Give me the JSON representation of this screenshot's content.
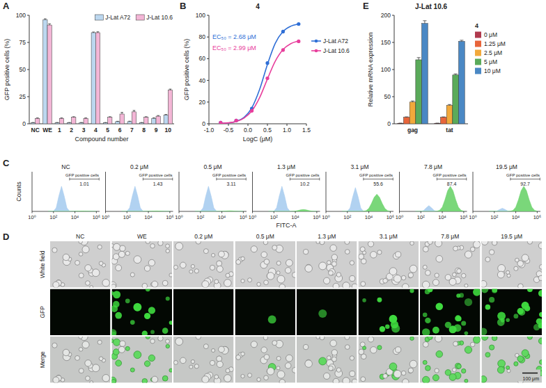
{
  "chart_data": [
    {
      "panel_label": "A",
      "type": "bar",
      "x_label": "Compound number",
      "y_label": "GFP positive cells (%)",
      "categories": [
        "NC",
        "WE",
        "1",
        "2",
        "3",
        "4",
        "5",
        "6",
        "7",
        "8",
        "9",
        "10"
      ],
      "series": [
        {
          "name": "J-Lat A72",
          "color": "#bcd7ef",
          "values": [
            1,
            96,
            1,
            1,
            1,
            84,
            1,
            2,
            2,
            1,
            5,
            8
          ],
          "errors": [
            0.2,
            0.8,
            0.2,
            0.2,
            0.2,
            0.6,
            0.2,
            0.3,
            0.4,
            0.2,
            0.5,
            0.6
          ]
        },
        {
          "name": "J-Lat 10.6",
          "color": "#f3b6d6",
          "values": [
            5,
            91,
            5,
            6,
            5,
            84,
            6,
            9,
            11,
            6,
            7,
            31
          ],
          "errors": [
            0.4,
            1.2,
            0.4,
            0.5,
            0.4,
            0.8,
            0.5,
            1.5,
            1.3,
            0.5,
            0.6,
            1.0
          ]
        }
      ],
      "ylim": [
        0,
        100
      ],
      "yticks": [
        0,
        25,
        50,
        75,
        100
      ],
      "legend": "top-right"
    },
    {
      "panel_label": "B",
      "type": "line",
      "title": "4",
      "x_label": "LogC (μM)",
      "y_label": "GFP positive cells (%)",
      "xlim": [
        -1,
        1.5
      ],
      "xticks": [
        {
          "value": -1,
          "label": "-1.0"
        },
        -0.5,
        {
          "value": 0,
          "label": "0.0"
        },
        0.5,
        {
          "value": 1,
          "label": "1.0"
        },
        1.5
      ],
      "ylim": [
        0,
        100
      ],
      "yticks": [
        0,
        20,
        40,
        60,
        80,
        100
      ],
      "series": [
        {
          "name": "J-Lat A72",
          "color": "#2f6fd6",
          "marker": "circle",
          "x": [
            -0.7,
            -0.3,
            0.1,
            0.5,
            0.9,
            1.3
          ],
          "values": [
            1,
            3,
            14,
            56,
            85,
            92
          ],
          "fit": {
            "x": [
              -0.7,
              -0.5,
              -0.3,
              -0.1,
              0.1,
              0.3,
              0.5,
              0.7,
              0.9,
              1.1,
              1.3
            ],
            "values": [
              0.3,
              0.8,
              2.3,
              5.9,
              14.7,
              31.7,
              54.7,
              74.1,
              85.1,
              90,
              91.9
            ]
          }
        },
        {
          "name": "J-Lat 10.6",
          "color": "#e83e9c",
          "marker": "circle",
          "x": [
            -0.7,
            -0.3,
            0.1,
            0.5,
            0.9,
            1.3
          ],
          "values": [
            1,
            3,
            12,
            42,
            68,
            76
          ],
          "fit": {
            "x": [
              -0.7,
              -0.5,
              -0.3,
              -0.1,
              0.1,
              0.3,
              0.5,
              0.7,
              0.9,
              1.1,
              1.3
            ],
            "values": [
              0.3,
              0.9,
              2.1,
              5.2,
              11.8,
              24.1,
              41.3,
              57.6,
              68.4,
              73.9,
              76.3
            ]
          }
        }
      ],
      "annotations": [
        {
          "text": "EC₅₀ = 2.68 μM",
          "color": "#2f6fd6"
        },
        {
          "text": "EC₅₀ = 2.99 μM",
          "color": "#e83e9c"
        }
      ],
      "legend": "right"
    },
    {
      "panel_label": "C",
      "type": "area",
      "x_label": "FITC-A",
      "y_label": "Counts",
      "log": "x",
      "tick_labels": "x",
      "xlim": [
        1,
        2000000
      ],
      "xticks": [
        {
          "value": 1,
          "label": "10⁰"
        },
        {
          "value": 100,
          "label": "10²"
        },
        {
          "value": 10000,
          "label": "10⁴"
        },
        {
          "value": 1000000,
          "label": "10⁶"
        }
      ],
      "ylim": [
        0,
        150
      ],
      "x": [
        31.6,
        56.2,
        100,
        177.8,
        316.2,
        562.3,
        1000,
        1778,
        3162,
        5623,
        10000,
        17783,
        31623,
        56234,
        100000,
        177828,
        316228,
        562341,
        1000000
      ],
      "panels": [
        {
          "title": "NC",
          "gate": {
            "label": "GFP positive cells",
            "value": 1.01,
            "x": [
              3162,
              1800000
            ]
          },
          "series": [
            {
              "color": "#a9cdf0",
              "values": [
                0,
                0,
                1,
                13,
                58,
                95,
                58,
                13,
                1,
                0,
                0,
                0,
                0,
                0,
                0,
                0,
                0,
                0,
                0
              ]
            },
            {
              "color": "#6cd36c",
              "values": [
                0,
                0,
                0,
                0,
                0,
                0,
                0,
                0,
                0,
                0,
                0.2,
                0.5,
                0.8,
                1,
                0.8,
                0.5,
                0.2,
                0,
                0
              ]
            }
          ]
        },
        {
          "title": "0.2 μM",
          "gate": {
            "label": "GFP positive cells",
            "value": 1.43,
            "x": [
              3162,
              1800000
            ]
          },
          "series": [
            {
              "color": "#a9cdf0",
              "values": [
                0,
                0,
                1,
                13,
                58,
                95,
                58,
                13,
                1,
                0,
                0,
                0,
                0,
                0,
                0,
                0,
                0,
                0,
                0
              ]
            },
            {
              "color": "#6cd36c",
              "values": [
                0,
                0,
                0,
                0,
                0,
                0,
                0,
                0,
                0,
                0.1,
                0.3,
                0.7,
                1.2,
                1.5,
                1.2,
                0.7,
                0.3,
                0.1,
                0
              ]
            }
          ]
        },
        {
          "title": "0.5 μM",
          "gate": {
            "label": "GFP positive cells",
            "value": 3.11,
            "x": [
              3162,
              1800000
            ]
          },
          "series": [
            {
              "color": "#a9cdf0",
              "values": [
                0,
                0,
                1,
                13,
                58,
                95,
                58,
                13,
                1,
                0,
                0,
                0,
                0,
                0,
                0,
                0,
                0,
                0,
                0
              ]
            },
            {
              "color": "#6cd36c",
              "values": [
                0,
                0,
                0,
                0,
                0,
                0,
                0,
                0,
                0,
                0.1,
                0.3,
                0.9,
                1.6,
                2,
                1.6,
                0.9,
                0.3,
                0.1,
                0
              ]
            }
          ]
        },
        {
          "title": "1.3 μM",
          "gate": {
            "label": "GFP positive cells",
            "value": 10.2,
            "x": [
              3162,
              1800000
            ]
          },
          "series": [
            {
              "color": "#a9cdf0",
              "values": [
                0,
                0,
                1,
                13,
                58,
                95,
                58,
                13,
                1,
                0,
                0,
                0,
                0,
                0,
                0,
                0,
                0,
                0,
                0
              ]
            },
            {
              "color": "#6cd36c",
              "values": [
                0,
                0,
                0,
                0,
                0,
                0,
                0,
                0,
                0.1,
                0.3,
                1.2,
                3.2,
                5.7,
                7,
                5.7,
                3.2,
                1.2,
                0.3,
                0.1
              ]
            }
          ]
        },
        {
          "title": "3.1 μM",
          "gate": {
            "label": "GFP positive cells",
            "value": 55.6,
            "x": [
              3162,
              1800000
            ]
          },
          "series": [
            {
              "color": "#a9cdf0",
              "values": [
                0,
                0,
                0.9,
                12.6,
                55,
                90,
                55,
                12.6,
                0.9,
                0,
                0,
                0,
                0,
                0,
                0,
                0,
                0,
                0,
                0
              ]
            },
            {
              "color": "#6cd36c",
              "values": [
                0,
                0,
                0,
                0,
                0,
                0,
                0,
                0,
                0.5,
                2.9,
                11,
                30,
                53,
                65,
                53,
                30,
                11,
                2.9,
                0.5
              ]
            }
          ]
        },
        {
          "title": "7.8 μM",
          "gate": {
            "label": "GFP positive cells",
            "value": 87.4,
            "x": [
              3162,
              1800000
            ]
          },
          "series": [
            {
              "color": "#a9cdf0",
              "values": [
                0,
                0,
                0.2,
                3.1,
                13.4,
                22,
                13.4,
                3.1,
                0.2,
                0,
                0,
                0,
                0,
                0,
                0,
                0,
                0,
                0,
                0
              ]
            },
            {
              "color": "#6cd36c",
              "values": [
                0,
                0,
                0,
                0,
                0,
                0,
                0,
                0,
                0.8,
                4.2,
                16,
                44,
                78,
                95,
                78,
                44,
                16,
                4.2,
                0.8
              ]
            }
          ]
        },
        {
          "title": "19.5 μM",
          "gate": {
            "label": "GFP positive cells",
            "value": 92.7,
            "x": [
              3162,
              1800000
            ]
          },
          "series": [
            {
              "color": "#a9cdf0",
              "values": [
                0,
                0,
                0.1,
                1.7,
                7.3,
                12,
                7.3,
                1.7,
                0.1,
                0,
                0,
                0,
                0,
                0,
                0,
                0,
                0,
                0,
                0
              ]
            },
            {
              "color": "#6cd36c",
              "values": [
                0,
                0,
                0,
                0,
                0,
                0,
                0,
                0,
                0.8,
                4.2,
                16,
                44,
                78,
                95,
                78,
                44,
                16,
                4.2,
                0.8
              ]
            }
          ]
        }
      ]
    },
    {
      "panel_label": "E",
      "type": "bar",
      "title": "J-Lat 10.6",
      "legend_title": "4",
      "y_label": "Relative mRNA expression",
      "categories": [
        "gag",
        "tat"
      ],
      "series": [
        {
          "name": "0 μM",
          "color": "#b03a4e",
          "values": [
            1,
            1
          ],
          "errors": [
            0.2,
            0.2
          ]
        },
        {
          "name": "1.25 μM",
          "color": "#e8653a",
          "values": [
            12,
            12
          ],
          "errors": [
            0.8,
            0.7
          ]
        },
        {
          "name": "2.5 μM",
          "color": "#f2a93b",
          "values": [
            40,
            34
          ],
          "errors": [
            2,
            1.5
          ]
        },
        {
          "name": "5 μM",
          "color": "#5aaa5a",
          "values": [
            118,
            90
          ],
          "errors": [
            4,
            2
          ]
        },
        {
          "name": "10 μM",
          "color": "#4a88c4",
          "values": [
            185,
            152
          ],
          "errors": [
            5,
            2
          ]
        }
      ],
      "ylim": [
        0,
        200
      ],
      "yticks": [
        0,
        50,
        100,
        150,
        200
      ],
      "legend": "right"
    }
  ],
  "micrograph": {
    "panel_label": "D",
    "columns": [
      "NC",
      "WE",
      "0.2 μM",
      "0.5 μM",
      "1.3 μM",
      "3.1 μM",
      "7.8 μM",
      "19.5 μM"
    ],
    "rows": [
      "White field",
      "GFP",
      "Merge"
    ],
    "scale_bar": "100 μm"
  }
}
